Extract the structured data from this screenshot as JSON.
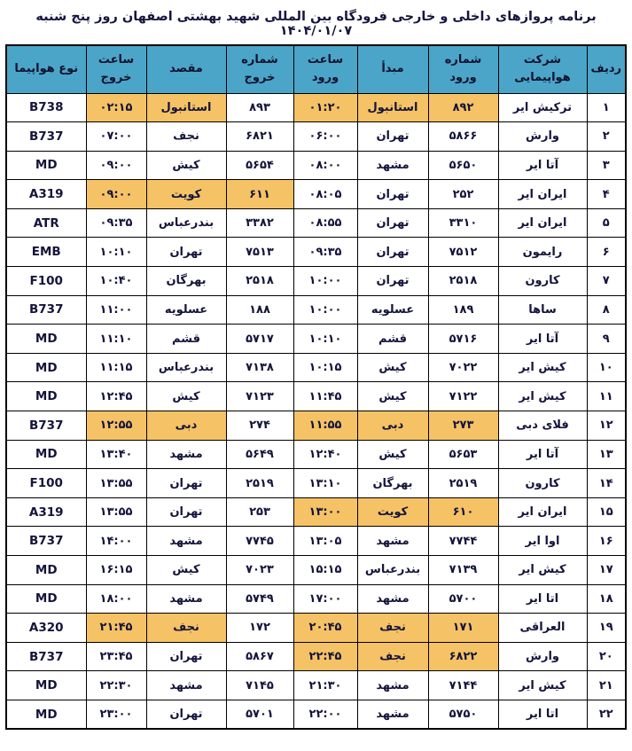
{
  "title": "برنامه پروازهای داخلی و خارجی فرودگاه بین المللی شهید بهشتی اصفهان روز پنج شنبه ۱۴۰۴/۰۱/۰۷",
  "colors": {
    "header_bg": "#4ba5c8",
    "highlight": "#f5c265",
    "border": "#000000",
    "text": "#14143c",
    "page_bg": "#ffffff"
  },
  "table": {
    "headers": [
      {
        "key": "radif",
        "label": "ردیف"
      },
      {
        "key": "airline",
        "label": "شرکت هواپیمایی"
      },
      {
        "key": "arrival-number",
        "label": "شماره ورود"
      },
      {
        "key": "origin",
        "label": "مبدأ"
      },
      {
        "key": "arrival-time",
        "label": "ساعت ورود"
      },
      {
        "key": "departure-number",
        "label": "شماره خروج"
      },
      {
        "key": "destination",
        "label": "مقصد"
      },
      {
        "key": "departure-time",
        "label": "ساعت خروج"
      },
      {
        "key": "aircraft-type",
        "label": "نوع هواپیما"
      }
    ],
    "rows": [
      {
        "cells": [
          "۱",
          "ترکیش ایر",
          "۸۹۲",
          "استانبول",
          "۰۱:۲۰",
          "۸۹۳",
          "استانبول",
          "۰۲:۱۵",
          "B738"
        ],
        "highlight": [
          2,
          3,
          4,
          6,
          7
        ]
      },
      {
        "cells": [
          "۲",
          "وارش",
          "۵۸۶۶",
          "تهران",
          "۰۶:۰۰",
          "۶۸۲۱",
          "نجف",
          "۰۷:۰۰",
          "B737"
        ],
        "highlight": []
      },
      {
        "cells": [
          "۳",
          "آتا ایر",
          "۵۶۵۰",
          "مشهد",
          "۰۸:۰۰",
          "۵۶۵۴",
          "کیش",
          "۰۹:۰۰",
          "MD"
        ],
        "highlight": []
      },
      {
        "cells": [
          "۴",
          "ایران ایر",
          "۲۵۲",
          "تهران",
          "۰۸:۰۵",
          "۶۱۱",
          "کویت",
          "۰۹:۰۰",
          "A319"
        ],
        "highlight": [
          5,
          6,
          7
        ]
      },
      {
        "cells": [
          "۵",
          "ایران ایر",
          "۳۳۱۰",
          "تهران",
          "۰۸:۵۵",
          "۳۳۸۲",
          "بندرعباس",
          "۰۹:۳۵",
          "ATR"
        ],
        "highlight": []
      },
      {
        "cells": [
          "۶",
          "رایمون",
          "۷۵۱۲",
          "تهران",
          "۰۹:۳۵",
          "۷۵۱۳",
          "تهران",
          "۱۰:۱۰",
          "EMB"
        ],
        "highlight": []
      },
      {
        "cells": [
          "۷",
          "کارون",
          "۲۵۱۸",
          "تهران",
          "۱۰:۰۰",
          "۲۵۱۸",
          "بهرگان",
          "۱۰:۴۰",
          "F100"
        ],
        "highlight": []
      },
      {
        "cells": [
          "۸",
          "ساها",
          "۱۸۹",
          "عسلویه",
          "۱۰:۰۰",
          "۱۸۸",
          "عسلویه",
          "۱۱:۰۰",
          "B737"
        ],
        "highlight": []
      },
      {
        "cells": [
          "۹",
          "آتا ایر",
          "۵۷۱۶",
          "قشم",
          "۱۰:۱۰",
          "۵۷۱۷",
          "قشم",
          "۱۱:۱۰",
          "MD"
        ],
        "highlight": []
      },
      {
        "cells": [
          "۱۰",
          "کیش ایر",
          "۷۰۲۲",
          "کیش",
          "۱۰:۱۵",
          "۷۱۳۸",
          "بندرعباس",
          "۱۱:۱۵",
          "MD"
        ],
        "highlight": []
      },
      {
        "cells": [
          "۱۱",
          "کیش ایر",
          "۷۱۲۲",
          "کیش",
          "۱۱:۴۵",
          "۷۱۲۳",
          "کیش",
          "۱۲:۴۵",
          "MD"
        ],
        "highlight": []
      },
      {
        "cells": [
          "۱۲",
          "فلای دبی",
          "۲۷۳",
          "دبی",
          "۱۱:۵۵",
          "۲۷۴",
          "دبی",
          "۱۲:۵۵",
          "B737"
        ],
        "highlight": [
          2,
          3,
          4,
          6,
          7
        ]
      },
      {
        "cells": [
          "۱۳",
          "آتا ایر",
          "۵۶۵۳",
          "کیش",
          "۱۲:۴۰",
          "۵۶۴۹",
          "مشهد",
          "۱۳:۴۰",
          "MD"
        ],
        "highlight": []
      },
      {
        "cells": [
          "۱۴",
          "کارون",
          "۲۵۱۹",
          "بهرگان",
          "۱۳:۱۰",
          "۲۵۱۹",
          "تهران",
          "۱۳:۵۵",
          "F100"
        ],
        "highlight": []
      },
      {
        "cells": [
          "۱۵",
          "ایران ایر",
          "۶۱۰",
          "کویت",
          "۱۳:۰۰",
          "۲۵۳",
          "تهران",
          "۱۳:۵۵",
          "A319"
        ],
        "highlight": [
          2,
          3,
          4
        ]
      },
      {
        "cells": [
          "۱۶",
          "اوا ایر",
          "۷۷۴۴",
          "مشهد",
          "۱۳:۰۵",
          "۷۷۴۵",
          "مشهد",
          "۱۴:۰۰",
          "B737"
        ],
        "highlight": []
      },
      {
        "cells": [
          "۱۷",
          "کیش ایر",
          "۷۱۳۹",
          "بندرعباس",
          "۱۵:۱۵",
          "۷۰۲۳",
          "کیش",
          "۱۶:۱۵",
          "MD"
        ],
        "highlight": []
      },
      {
        "cells": [
          "۱۸",
          "اتا ایر",
          "۵۷۰۰",
          "مشهد",
          "۱۷:۰۰",
          "۵۷۴۹",
          "مشهد",
          "۱۸:۰۰",
          "MD"
        ],
        "highlight": []
      },
      {
        "cells": [
          "۱۹",
          "العراقی",
          "۱۷۱",
          "نجف",
          "۲۰:۴۵",
          "۱۷۲",
          "نجف",
          "۲۱:۴۵",
          "A320"
        ],
        "highlight": [
          2,
          3,
          4,
          6,
          7
        ]
      },
      {
        "cells": [
          "۲۰",
          "وارش",
          "۶۸۲۲",
          "نجف",
          "۲۲:۴۵",
          "۵۸۶۷",
          "تهران",
          "۲۳:۴۵",
          "B737"
        ],
        "highlight": [
          2,
          3,
          4
        ]
      },
      {
        "cells": [
          "۲۱",
          "کیش ایر",
          "۷۱۴۴",
          "مشهد",
          "۲۱:۳۰",
          "۷۱۴۵",
          "مشهد",
          "۲۲:۳۰",
          "MD"
        ],
        "highlight": []
      },
      {
        "cells": [
          "۲۲",
          "اتا ایر",
          "۵۷۵۰",
          "مشهد",
          "۲۲:۰۰",
          "۵۷۰۱",
          "تهران",
          "۲۳:۰۰",
          "MD"
        ],
        "highlight": []
      }
    ]
  }
}
